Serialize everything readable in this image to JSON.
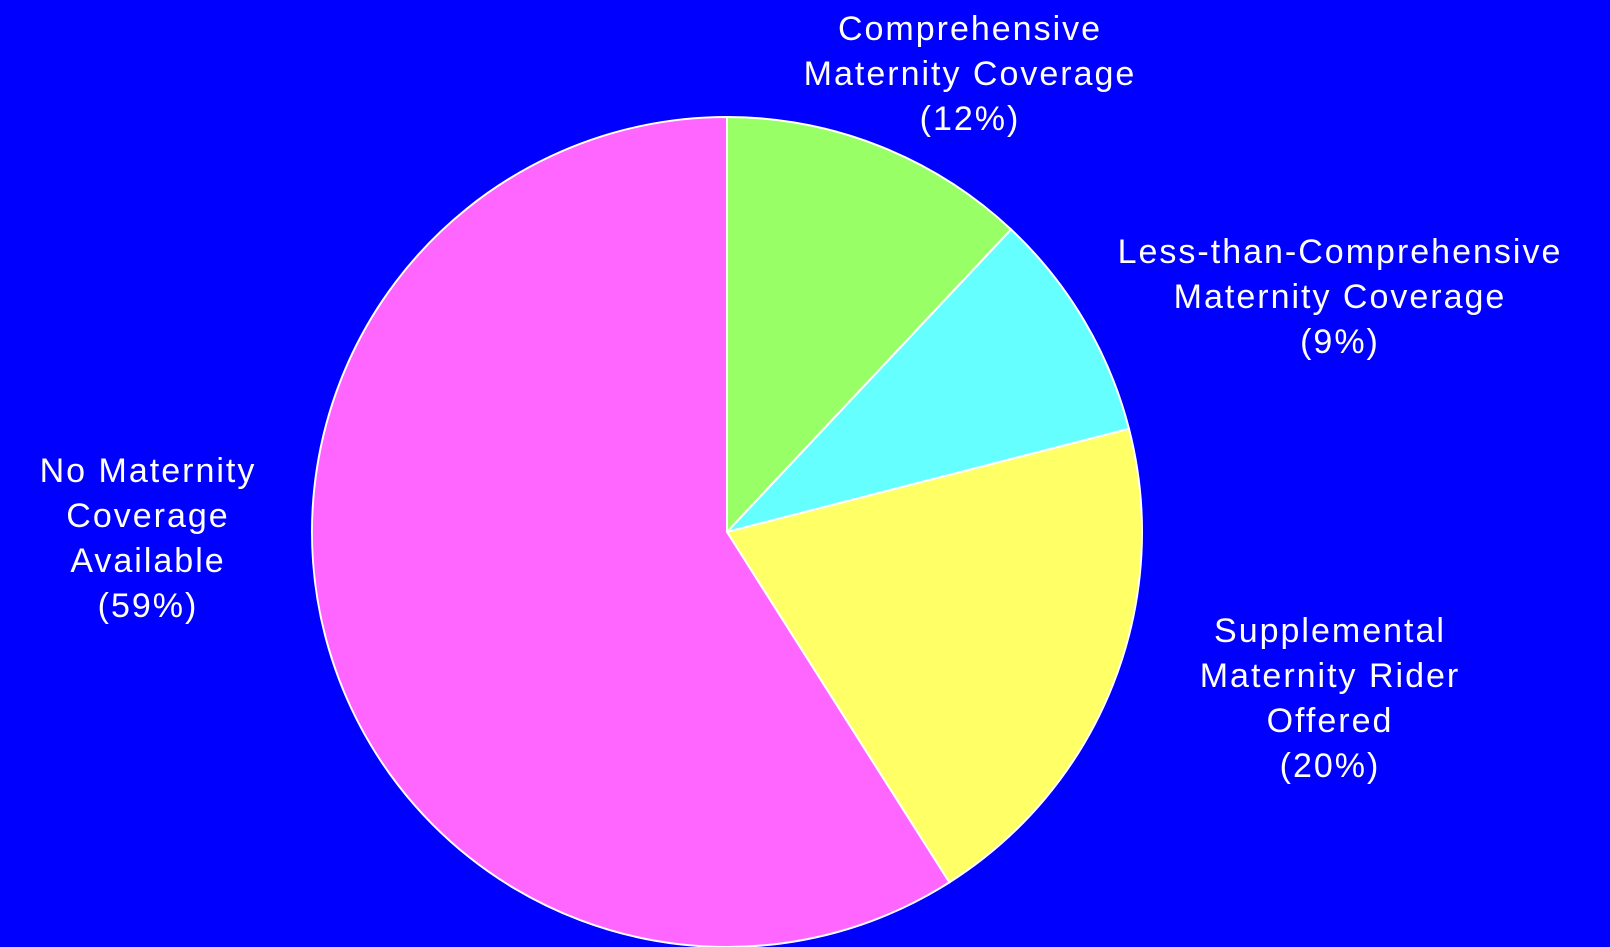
{
  "chart_data": {
    "type": "pie",
    "title": "",
    "start_angle_deg": 0,
    "direction": "clockwise",
    "background_color": "#0000FF",
    "slices": [
      {
        "label_lines": [
          "Comprehensive",
          "Maternity Coverage"
        ],
        "value": 12,
        "value_label": "(12%)",
        "color": "#99FF66"
      },
      {
        "label_lines": [
          "Less-than-Comprehensive",
          "Maternity Coverage"
        ],
        "value": 9,
        "value_label": "(9%)",
        "color": "#66FFFF"
      },
      {
        "label_lines": [
          "Supplemental",
          "Maternity Rider",
          "Offered"
        ],
        "value": 20,
        "value_label": "(20%)",
        "color": "#FFFF66"
      },
      {
        "label_lines": [
          "No Maternity",
          "Coverage",
          "Available"
        ],
        "value": 59,
        "value_label": "(59%)",
        "color": "#FF66FF"
      }
    ]
  }
}
